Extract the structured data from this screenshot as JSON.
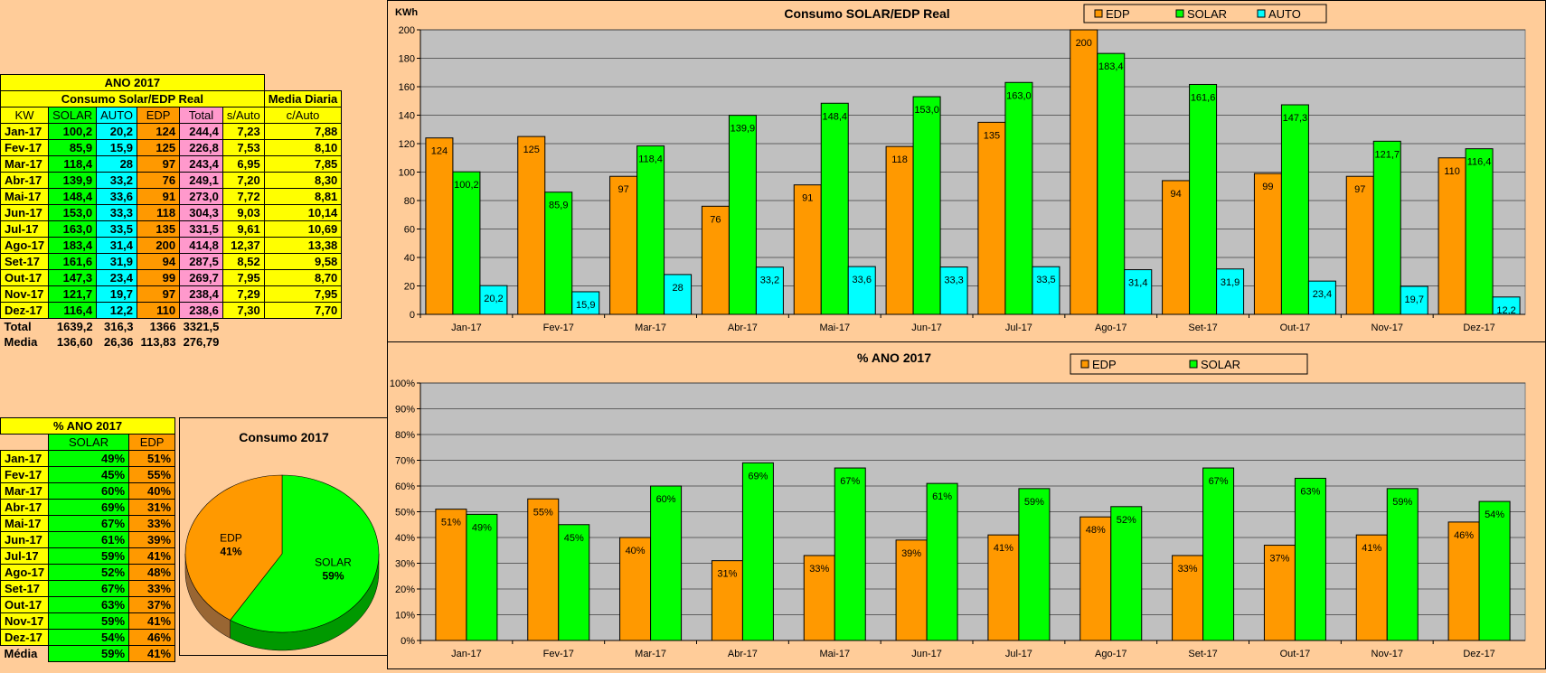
{
  "months": [
    "Jan-17",
    "Fev-17",
    "Mar-17",
    "Abr-17",
    "Mai-17",
    "Jun-17",
    "Jul-17",
    "Ago-17",
    "Set-17",
    "Out-17",
    "Nov-17",
    "Dez-17"
  ],
  "table1": {
    "title": "ANO 2017",
    "subtitle": "Consumo Solar/EDP Real",
    "media_header": "Media Diaria",
    "headers": [
      "KW",
      "SOLAR",
      "AUTO",
      "EDP",
      "Total",
      "s/Auto",
      "c/Auto"
    ],
    "rows": [
      [
        "Jan-17",
        "100,2",
        "20,2",
        "124",
        "244,4",
        "7,23",
        "7,88"
      ],
      [
        "Fev-17",
        "85,9",
        "15,9",
        "125",
        "226,8",
        "7,53",
        "8,10"
      ],
      [
        "Mar-17",
        "118,4",
        "28",
        "97",
        "243,4",
        "6,95",
        "7,85"
      ],
      [
        "Abr-17",
        "139,9",
        "33,2",
        "76",
        "249,1",
        "7,20",
        "8,30"
      ],
      [
        "Mai-17",
        "148,4",
        "33,6",
        "91",
        "273,0",
        "7,72",
        "8,81"
      ],
      [
        "Jun-17",
        "153,0",
        "33,3",
        "118",
        "304,3",
        "9,03",
        "10,14"
      ],
      [
        "Jul-17",
        "163,0",
        "33,5",
        "135",
        "331,5",
        "9,61",
        "10,69"
      ],
      [
        "Ago-17",
        "183,4",
        "31,4",
        "200",
        "414,8",
        "12,37",
        "13,38"
      ],
      [
        "Set-17",
        "161,6",
        "31,9",
        "94",
        "287,5",
        "8,52",
        "9,58"
      ],
      [
        "Out-17",
        "147,3",
        "23,4",
        "99",
        "269,7",
        "7,95",
        "8,70"
      ],
      [
        "Nov-17",
        "121,7",
        "19,7",
        "97",
        "238,4",
        "7,29",
        "7,95"
      ],
      [
        "Dez-17",
        "116,4",
        "12,2",
        "110",
        "238,6",
        "7,30",
        "7,70"
      ]
    ],
    "total": [
      "Total",
      "1639,2",
      "316,3",
      "1366",
      "3321,5"
    ],
    "media": [
      "Media",
      "136,60",
      "26,36",
      "113,83",
      "276,79"
    ]
  },
  "table2": {
    "title": "% ANO 2017",
    "headers": [
      "SOLAR",
      "EDP"
    ],
    "rows": [
      [
        "Jan-17",
        "49%",
        "51%"
      ],
      [
        "Fev-17",
        "45%",
        "55%"
      ],
      [
        "Mar-17",
        "60%",
        "40%"
      ],
      [
        "Abr-17",
        "69%",
        "31%"
      ],
      [
        "Mai-17",
        "67%",
        "33%"
      ],
      [
        "Jun-17",
        "61%",
        "39%"
      ],
      [
        "Jul-17",
        "59%",
        "41%"
      ],
      [
        "Ago-17",
        "52%",
        "48%"
      ],
      [
        "Set-17",
        "67%",
        "33%"
      ],
      [
        "Out-17",
        "63%",
        "37%"
      ],
      [
        "Nov-17",
        "59%",
        "41%"
      ],
      [
        "Dez-17",
        "54%",
        "46%"
      ]
    ],
    "media": [
      "Média",
      "59%",
      "41%"
    ]
  },
  "colors": {
    "edp": "#ff9900",
    "solar": "#00ff00",
    "auto": "#00ffff",
    "plot_bg": "#c0c0c0",
    "page_bg": "#ffcc99"
  },
  "chart_data": [
    {
      "type": "bar",
      "title": "Consumo SOLAR/EDP Real",
      "ylabel": "KWh",
      "ylim": [
        0,
        200
      ],
      "yticks": [
        0,
        20,
        40,
        60,
        80,
        100,
        120,
        140,
        160,
        180,
        200
      ],
      "grid": true,
      "legend_position": "top",
      "categories": [
        "Jan-17",
        "Fev-17",
        "Mar-17",
        "Abr-17",
        "Mai-17",
        "Jun-17",
        "Jul-17",
        "Ago-17",
        "Set-17",
        "Out-17",
        "Nov-17",
        "Dez-17"
      ],
      "series": [
        {
          "name": "EDP",
          "color": "#ff9900",
          "values": [
            124,
            125,
            97,
            76,
            91,
            118,
            135,
            200,
            94,
            99,
            97,
            110
          ],
          "labels": [
            "124",
            "125",
            "97",
            "76",
            "91",
            "118",
            "135",
            "200",
            "94",
            "99",
            "97",
            "110"
          ]
        },
        {
          "name": "SOLAR",
          "color": "#00ff00",
          "values": [
            100.2,
            85.9,
            118.4,
            139.9,
            148.4,
            153.0,
            163.0,
            183.4,
            161.6,
            147.3,
            121.7,
            116.4
          ],
          "labels": [
            "100,2",
            "85,9",
            "118,4",
            "139,9",
            "148,4",
            "153,0",
            "163,0",
            "183,4",
            "161,6",
            "147,3",
            "121,7",
            "116,4"
          ]
        },
        {
          "name": "AUTO",
          "color": "#00ffff",
          "values": [
            20.2,
            15.9,
            28,
            33.2,
            33.6,
            33.3,
            33.5,
            31.4,
            31.9,
            23.4,
            19.7,
            12.2
          ],
          "labels": [
            "20,2",
            "15,9",
            "28",
            "33,2",
            "33,6",
            "33,3",
            "33,5",
            "31,4",
            "31,9",
            "23,4",
            "19,7",
            "12,2"
          ]
        }
      ]
    },
    {
      "type": "bar",
      "title": "% ANO 2017",
      "ylim": [
        0,
        100
      ],
      "yticks": [
        "0%",
        "10%",
        "20%",
        "30%",
        "40%",
        "50%",
        "60%",
        "70%",
        "80%",
        "90%",
        "100%"
      ],
      "grid": true,
      "legend_position": "top",
      "categories": [
        "Jan-17",
        "Fev-17",
        "Mar-17",
        "Abr-17",
        "Mai-17",
        "Jun-17",
        "Jul-17",
        "Ago-17",
        "Set-17",
        "Out-17",
        "Nov-17",
        "Dez-17"
      ],
      "series": [
        {
          "name": "EDP",
          "color": "#ff9900",
          "values": [
            51,
            55,
            40,
            31,
            33,
            39,
            41,
            48,
            33,
            37,
            41,
            46
          ]
        },
        {
          "name": "SOLAR",
          "color": "#00ff00",
          "values": [
            49,
            45,
            60,
            69,
            67,
            61,
            59,
            52,
            67,
            63,
            59,
            54
          ]
        }
      ]
    },
    {
      "type": "pie",
      "title": "Consumo 2017",
      "slices": [
        {
          "name": "EDP",
          "value": 41,
          "label": "41%",
          "color": "#ff9900"
        },
        {
          "name": "SOLAR",
          "value": 59,
          "label": "59%",
          "color": "#00ff00"
        }
      ]
    }
  ]
}
